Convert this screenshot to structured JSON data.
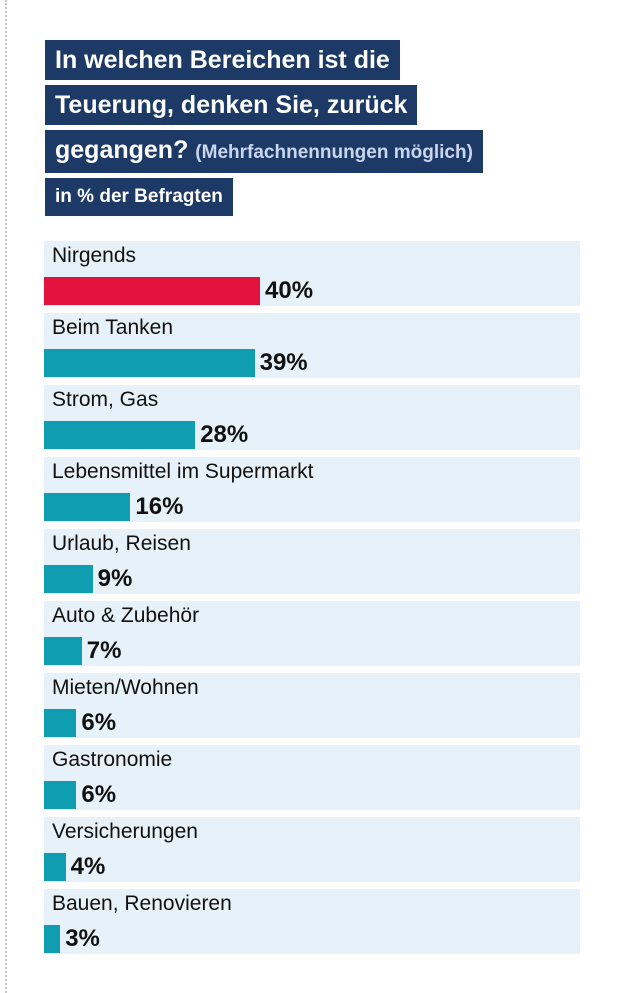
{
  "header": {
    "title_lines": [
      "In welchen Bereichen ist die",
      "Teuerung, denken Sie, zurück",
      "gegangen?"
    ],
    "subtitle_note": "(Mehrfachnennungen möglich)",
    "unit": "in % der Befragten"
  },
  "colors": {
    "title_bg": "#1d3a66",
    "bar": "#0f9db2",
    "highlight_bar": "#e2133f",
    "row_bg": "#e6f1f9"
  },
  "chart_data": {
    "type": "bar",
    "orientation": "horizontal",
    "title": "In welchen Bereichen ist die Teuerung, denken Sie, zurück gegangen? (Mehrfachnennungen möglich)",
    "unit": "in % der Befragten",
    "categories": [
      "Nirgends",
      "Beim Tanken",
      "Strom, Gas",
      "Lebensmittel im Supermarkt",
      "Urlaub, Reisen",
      "Auto & Zubehör",
      "Mieten/Wohnen",
      "Gastronomie",
      "Versicherungen",
      "Bauen, Renovieren"
    ],
    "values": [
      40,
      39,
      28,
      16,
      9,
      7,
      6,
      6,
      4,
      3
    ],
    "value_labels": [
      "40%",
      "39%",
      "28%",
      "16%",
      "9%",
      "7%",
      "6%",
      "6%",
      "4%",
      "3%"
    ],
    "highlighted_category": "Nirgends",
    "grid": false
  }
}
